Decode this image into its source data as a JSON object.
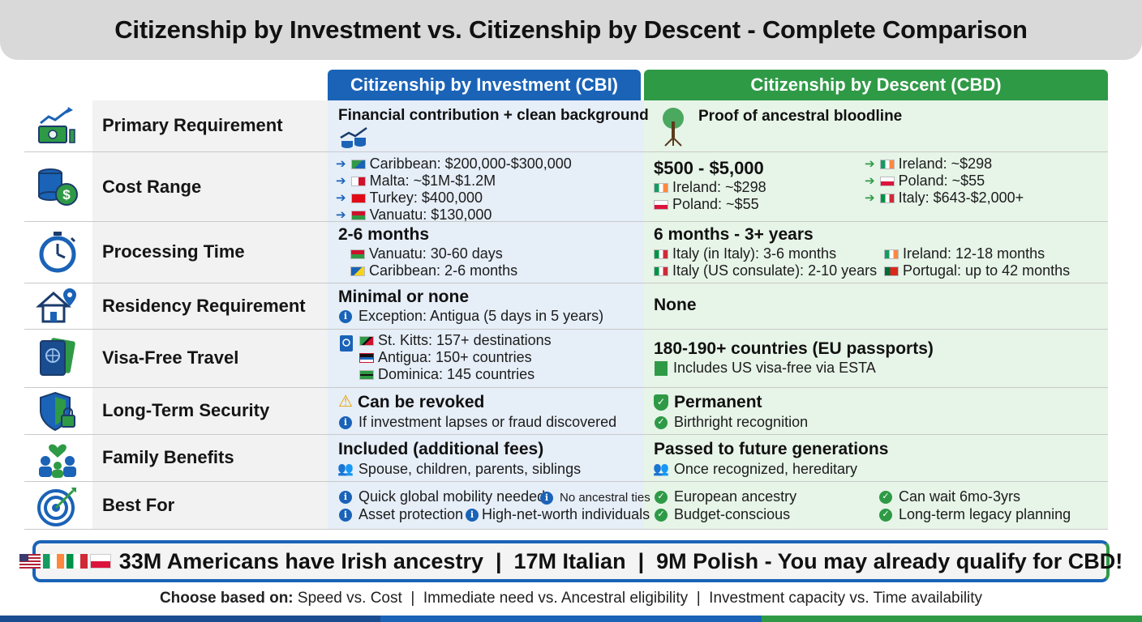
{
  "title": "Citizenship by Investment vs. Citizenship by Descent - Complete Comparison",
  "columns": {
    "cbi": "Citizenship by Investment (CBI)",
    "cbd": "Citizenship by Descent (CBD)"
  },
  "colors": {
    "cbi_blue": "#1a63b7",
    "cbd_green": "#2f9a46",
    "title_gray": "#d9d9d9"
  },
  "rows": {
    "primary": {
      "label": "Primary Requirement",
      "icon": "money-growth-icon",
      "cbi": "Financial contribution + clean background",
      "cbd": "Proof of ancestral bloodline"
    },
    "cost": {
      "label": "Cost Range",
      "icon": "coins-dollar-icon",
      "cbi": [
        "Caribbean: $200,000-$300,000",
        "Malta: ~$1M-$1.2M",
        "Turkey: $400,000",
        "Vanuatu: $130,000"
      ],
      "cbd_main": "$500 - $5,000",
      "cbd_left": [
        "Ireland: ~$298",
        "Poland: ~$55"
      ],
      "cbd_right": [
        "Ireland: ~$298",
        "Poland: ~$55",
        "Italy: $643-$2,000+"
      ]
    },
    "processing": {
      "label": "Processing Time",
      "icon": "stopwatch-icon",
      "cbi_main": "2-6 months",
      "cbi": [
        "Vanuatu: 30-60 days",
        "Caribbean: 2-6 months"
      ],
      "cbd_main": "6 months - 3+ years",
      "cbd_left": [
        "Italy (in Italy): 3-6 months",
        "Italy (US consulate): 2-10 years"
      ],
      "cbd_right": [
        "Ireland: 12-18 months",
        "Portugal: up to 42 months"
      ]
    },
    "residency": {
      "label": "Residency Requirement",
      "icon": "house-pin-icon",
      "cbi_main": "Minimal or none",
      "cbi_note": "Exception: Antigua (5 days in 5 years)",
      "cbd_main": "None"
    },
    "visa": {
      "label": "Visa-Free Travel",
      "icon": "passport-icon",
      "cbi": [
        "St. Kitts: 157+ destinations",
        "Antigua: 150+ countries",
        "Dominica: 145 countries"
      ],
      "cbd_main": "180-190+ countries (EU passports)",
      "cbd_note": "Includes US visa-free via ESTA"
    },
    "security": {
      "label": "Long-Term Security",
      "icon": "shield-lock-icon",
      "cbi_main": "Can be revoked",
      "cbi_note": "If investment lapses or fraud discovered",
      "cbd_main": "Permanent",
      "cbd_note": "Birthright recognition"
    },
    "family": {
      "label": "Family Benefits",
      "icon": "family-heart-icon",
      "cbi_main": "Included (additional fees)",
      "cbi_note": "Spouse, children, parents, siblings",
      "cbd_main": "Passed to future generations",
      "cbd_note": "Once recognized, hereditary"
    },
    "best": {
      "label": "Best For",
      "icon": "target-icon",
      "cbi": [
        "Quick global mobility needed",
        "No ancestral ties",
        "Asset protection",
        "High-net-worth individuals"
      ],
      "cbd_left": [
        "European ancestry",
        "Budget-conscious"
      ],
      "cbd_right": [
        "Can wait 6mo-3yrs",
        "Long-term legacy planning"
      ]
    }
  },
  "banner": "33M Americans have Irish ancestry  |  17M Italian  |  9M Polish - You may already qualify for CBD!",
  "footer": {
    "lead": "Choose based on:",
    "rest": " Speed vs. Cost  |  Immediate need vs. Ancestral eligibility  |  Investment capacity vs. Time availability"
  }
}
